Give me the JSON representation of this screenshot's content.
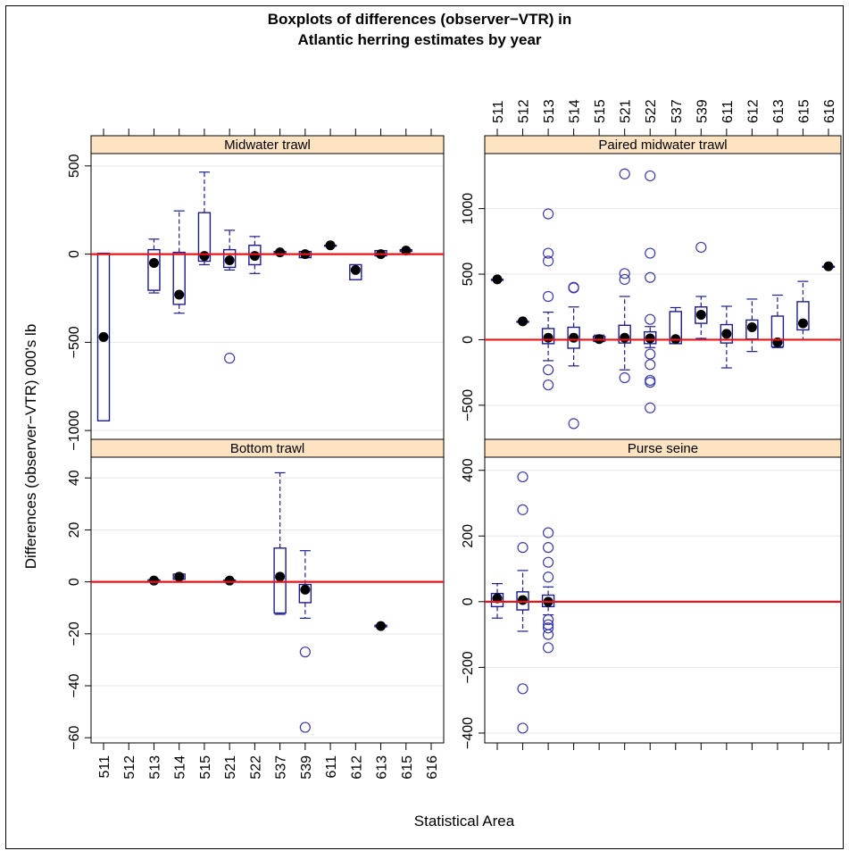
{
  "chart_data": {
    "type": "boxplot",
    "title_lines": [
      "Boxplots of differences (observer−VTR) in",
      "Atlantic herring estimates by year"
    ],
    "xlabel": "Statistical Area",
    "ylabel": "Differences (observer−VTR) 000's lb",
    "categories": [
      "511",
      "512",
      "513",
      "514",
      "515",
      "521",
      "522",
      "537",
      "539",
      "611",
      "612",
      "613",
      "615",
      "616"
    ],
    "reference_line": 0,
    "colors": {
      "box": "#1c1c8c",
      "outlier": "#3a3aa8",
      "median": "#000000",
      "reference": "#e8141a",
      "strip": "#fde3c2",
      "grid": "#e6e6e6"
    },
    "panels": [
      {
        "name": "Midwater trawl",
        "ylim": [
          -1050,
          570
        ],
        "yticks": [
          -1000,
          -500,
          0,
          500
        ],
        "yticklabels": [
          "−1000",
          "−500",
          "0",
          "500"
        ],
        "boxes": [
          {
            "area": "511",
            "median": -470,
            "q1": -945,
            "q3": 5,
            "whisker_low": -945,
            "whisker_high": 5,
            "outliers": []
          },
          {
            "area": "513",
            "median": -50,
            "q1": -205,
            "q3": 25,
            "whisker_low": -220,
            "whisker_high": 85,
            "outliers": []
          },
          {
            "area": "514",
            "median": -230,
            "q1": -285,
            "q3": 10,
            "whisker_low": -335,
            "whisker_high": 245,
            "outliers": []
          },
          {
            "area": "515",
            "median": -10,
            "q1": -40,
            "q3": 235,
            "whisker_low": -60,
            "whisker_high": 465,
            "outliers": []
          },
          {
            "area": "521",
            "median": -35,
            "q1": -75,
            "q3": 25,
            "whisker_low": -90,
            "whisker_high": 135,
            "outliers": [
              -590
            ]
          },
          {
            "area": "522",
            "median": -10,
            "q1": -60,
            "q3": 50,
            "whisker_low": -110,
            "whisker_high": 100,
            "outliers": []
          },
          {
            "area": "537",
            "median": 10,
            "q1": 5,
            "q3": 15,
            "whisker_low": 5,
            "whisker_high": 15,
            "outliers": []
          },
          {
            "area": "539",
            "median": 0,
            "q1": -20,
            "q3": 15,
            "whisker_low": -20,
            "whisker_high": 15,
            "outliers": []
          },
          {
            "area": "611",
            "median": 50,
            "q1": 50,
            "q3": 50,
            "whisker_low": 50,
            "whisker_high": 50,
            "outliers": []
          },
          {
            "area": "612",
            "median": -90,
            "q1": -145,
            "q3": -60,
            "whisker_low": -145,
            "whisker_high": -60,
            "outliers": []
          },
          {
            "area": "613",
            "median": 0,
            "q1": -10,
            "q3": 20,
            "whisker_low": -10,
            "whisker_high": 20,
            "outliers": []
          },
          {
            "area": "615",
            "median": 20,
            "q1": 15,
            "q3": 25,
            "whisker_low": 15,
            "whisker_high": 25,
            "outliers": []
          }
        ]
      },
      {
        "name": "Paired midwater trawl",
        "ylim": [
          -760,
          1420
        ],
        "yticks": [
          -500,
          0,
          500,
          1000
        ],
        "yticklabels": [
          "−500",
          "0",
          "500",
          "1000"
        ],
        "boxes": [
          {
            "area": "511",
            "median": 460,
            "q1": 460,
            "q3": 460,
            "whisker_low": 460,
            "whisker_high": 460,
            "outliers": []
          },
          {
            "area": "512",
            "median": 140,
            "q1": 140,
            "q3": 140,
            "whisker_low": 140,
            "whisker_high": 140,
            "outliers": []
          },
          {
            "area": "513",
            "median": 15,
            "q1": -30,
            "q3": 85,
            "whisker_low": -160,
            "whisker_high": 210,
            "outliers": [
              960,
              660,
              600,
              330,
              -230,
              -345
            ]
          },
          {
            "area": "514",
            "median": 15,
            "q1": -65,
            "q3": 95,
            "whisker_low": -200,
            "whisker_high": 250,
            "outliers": [
              400,
              395,
              -640
            ]
          },
          {
            "area": "515",
            "median": 5,
            "q1": -10,
            "q3": 25,
            "whisker_low": -15,
            "whisker_high": 35,
            "outliers": []
          },
          {
            "area": "521",
            "median": 15,
            "q1": -25,
            "q3": 110,
            "whisker_low": -230,
            "whisker_high": 330,
            "outliers": [
              1265,
              505,
              460,
              -290
            ]
          },
          {
            "area": "522",
            "median": 10,
            "q1": -30,
            "q3": 60,
            "whisker_low": -60,
            "whisker_high": 100,
            "outliers": [
              1250,
              660,
              475,
              155,
              -110,
              -190,
              -310,
              -325,
              -520
            ]
          },
          {
            "area": "537",
            "median": 5,
            "q1": -30,
            "q3": 215,
            "whisker_low": -30,
            "whisker_high": 245,
            "outliers": []
          },
          {
            "area": "539",
            "median": 190,
            "q1": 125,
            "q3": 250,
            "whisker_low": 10,
            "whisker_high": 330,
            "outliers": [
              705
            ]
          },
          {
            "area": "611",
            "median": 45,
            "q1": -25,
            "q3": 115,
            "whisker_low": -215,
            "whisker_high": 255,
            "outliers": []
          },
          {
            "area": "612",
            "median": 95,
            "q1": 5,
            "q3": 150,
            "whisker_low": -90,
            "whisker_high": 310,
            "outliers": []
          },
          {
            "area": "613",
            "median": -20,
            "q1": -55,
            "q3": 180,
            "whisker_low": -60,
            "whisker_high": 340,
            "outliers": []
          },
          {
            "area": "615",
            "median": 125,
            "q1": 75,
            "q3": 290,
            "whisker_low": 0,
            "whisker_high": 445,
            "outliers": []
          },
          {
            "area": "616",
            "median": 560,
            "q1": 560,
            "q3": 560,
            "whisker_low": 560,
            "whisker_high": 560,
            "outliers": []
          }
        ]
      },
      {
        "name": "Bottom trawl",
        "ylim": [
          -62,
          48
        ],
        "yticks": [
          -60,
          -40,
          -20,
          0,
          20,
          40
        ],
        "yticklabels": [
          "−60",
          "−40",
          "−20",
          "0",
          "20",
          "40"
        ],
        "boxes": [
          {
            "area": "513",
            "median": 0.5,
            "q1": 0.2,
            "q3": 0.8,
            "whisker_low": 0.2,
            "whisker_high": 0.8,
            "outliers": []
          },
          {
            "area": "514",
            "median": 2,
            "q1": 1,
            "q3": 3,
            "whisker_low": 1,
            "whisker_high": 3,
            "outliers": []
          },
          {
            "area": "521",
            "median": 0.5,
            "q1": 0.3,
            "q3": 0.7,
            "whisker_low": 0.3,
            "whisker_high": 0.7,
            "outliers": []
          },
          {
            "area": "537",
            "median": 2,
            "q1": -12,
            "q3": 13,
            "whisker_low": -12.5,
            "whisker_high": 42,
            "outliers": []
          },
          {
            "area": "539",
            "median": -3,
            "q1": -8,
            "q3": -1,
            "whisker_low": -14,
            "whisker_high": 12,
            "outliers": [
              -27,
              -56
            ]
          },
          {
            "area": "613",
            "median": -17,
            "q1": -17.3,
            "q3": -16.7,
            "whisker_low": -17.3,
            "whisker_high": -16.7,
            "outliers": []
          }
        ]
      },
      {
        "name": "Purse seine",
        "ylim": [
          -430,
          440
        ],
        "yticks": [
          -400,
          -200,
          0,
          200,
          400
        ],
        "yticklabels": [
          "−400",
          "−200",
          "0",
          "200",
          "400"
        ],
        "boxes": [
          {
            "area": "511",
            "median": 10,
            "q1": -15,
            "q3": 25,
            "whisker_low": -50,
            "whisker_high": 55,
            "outliers": []
          },
          {
            "area": "512",
            "median": 5,
            "q1": -25,
            "q3": 30,
            "whisker_low": -90,
            "whisker_high": 95,
            "outliers": [
              380,
              280,
              165,
              -265,
              -385
            ]
          },
          {
            "area": "513",
            "median": 0,
            "q1": -15,
            "q3": 20,
            "whisker_low": -40,
            "whisker_high": 45,
            "outliers": [
              210,
              165,
              120,
              75,
              -55,
              -70,
              -80,
              -100,
              -140
            ]
          }
        ]
      }
    ]
  }
}
